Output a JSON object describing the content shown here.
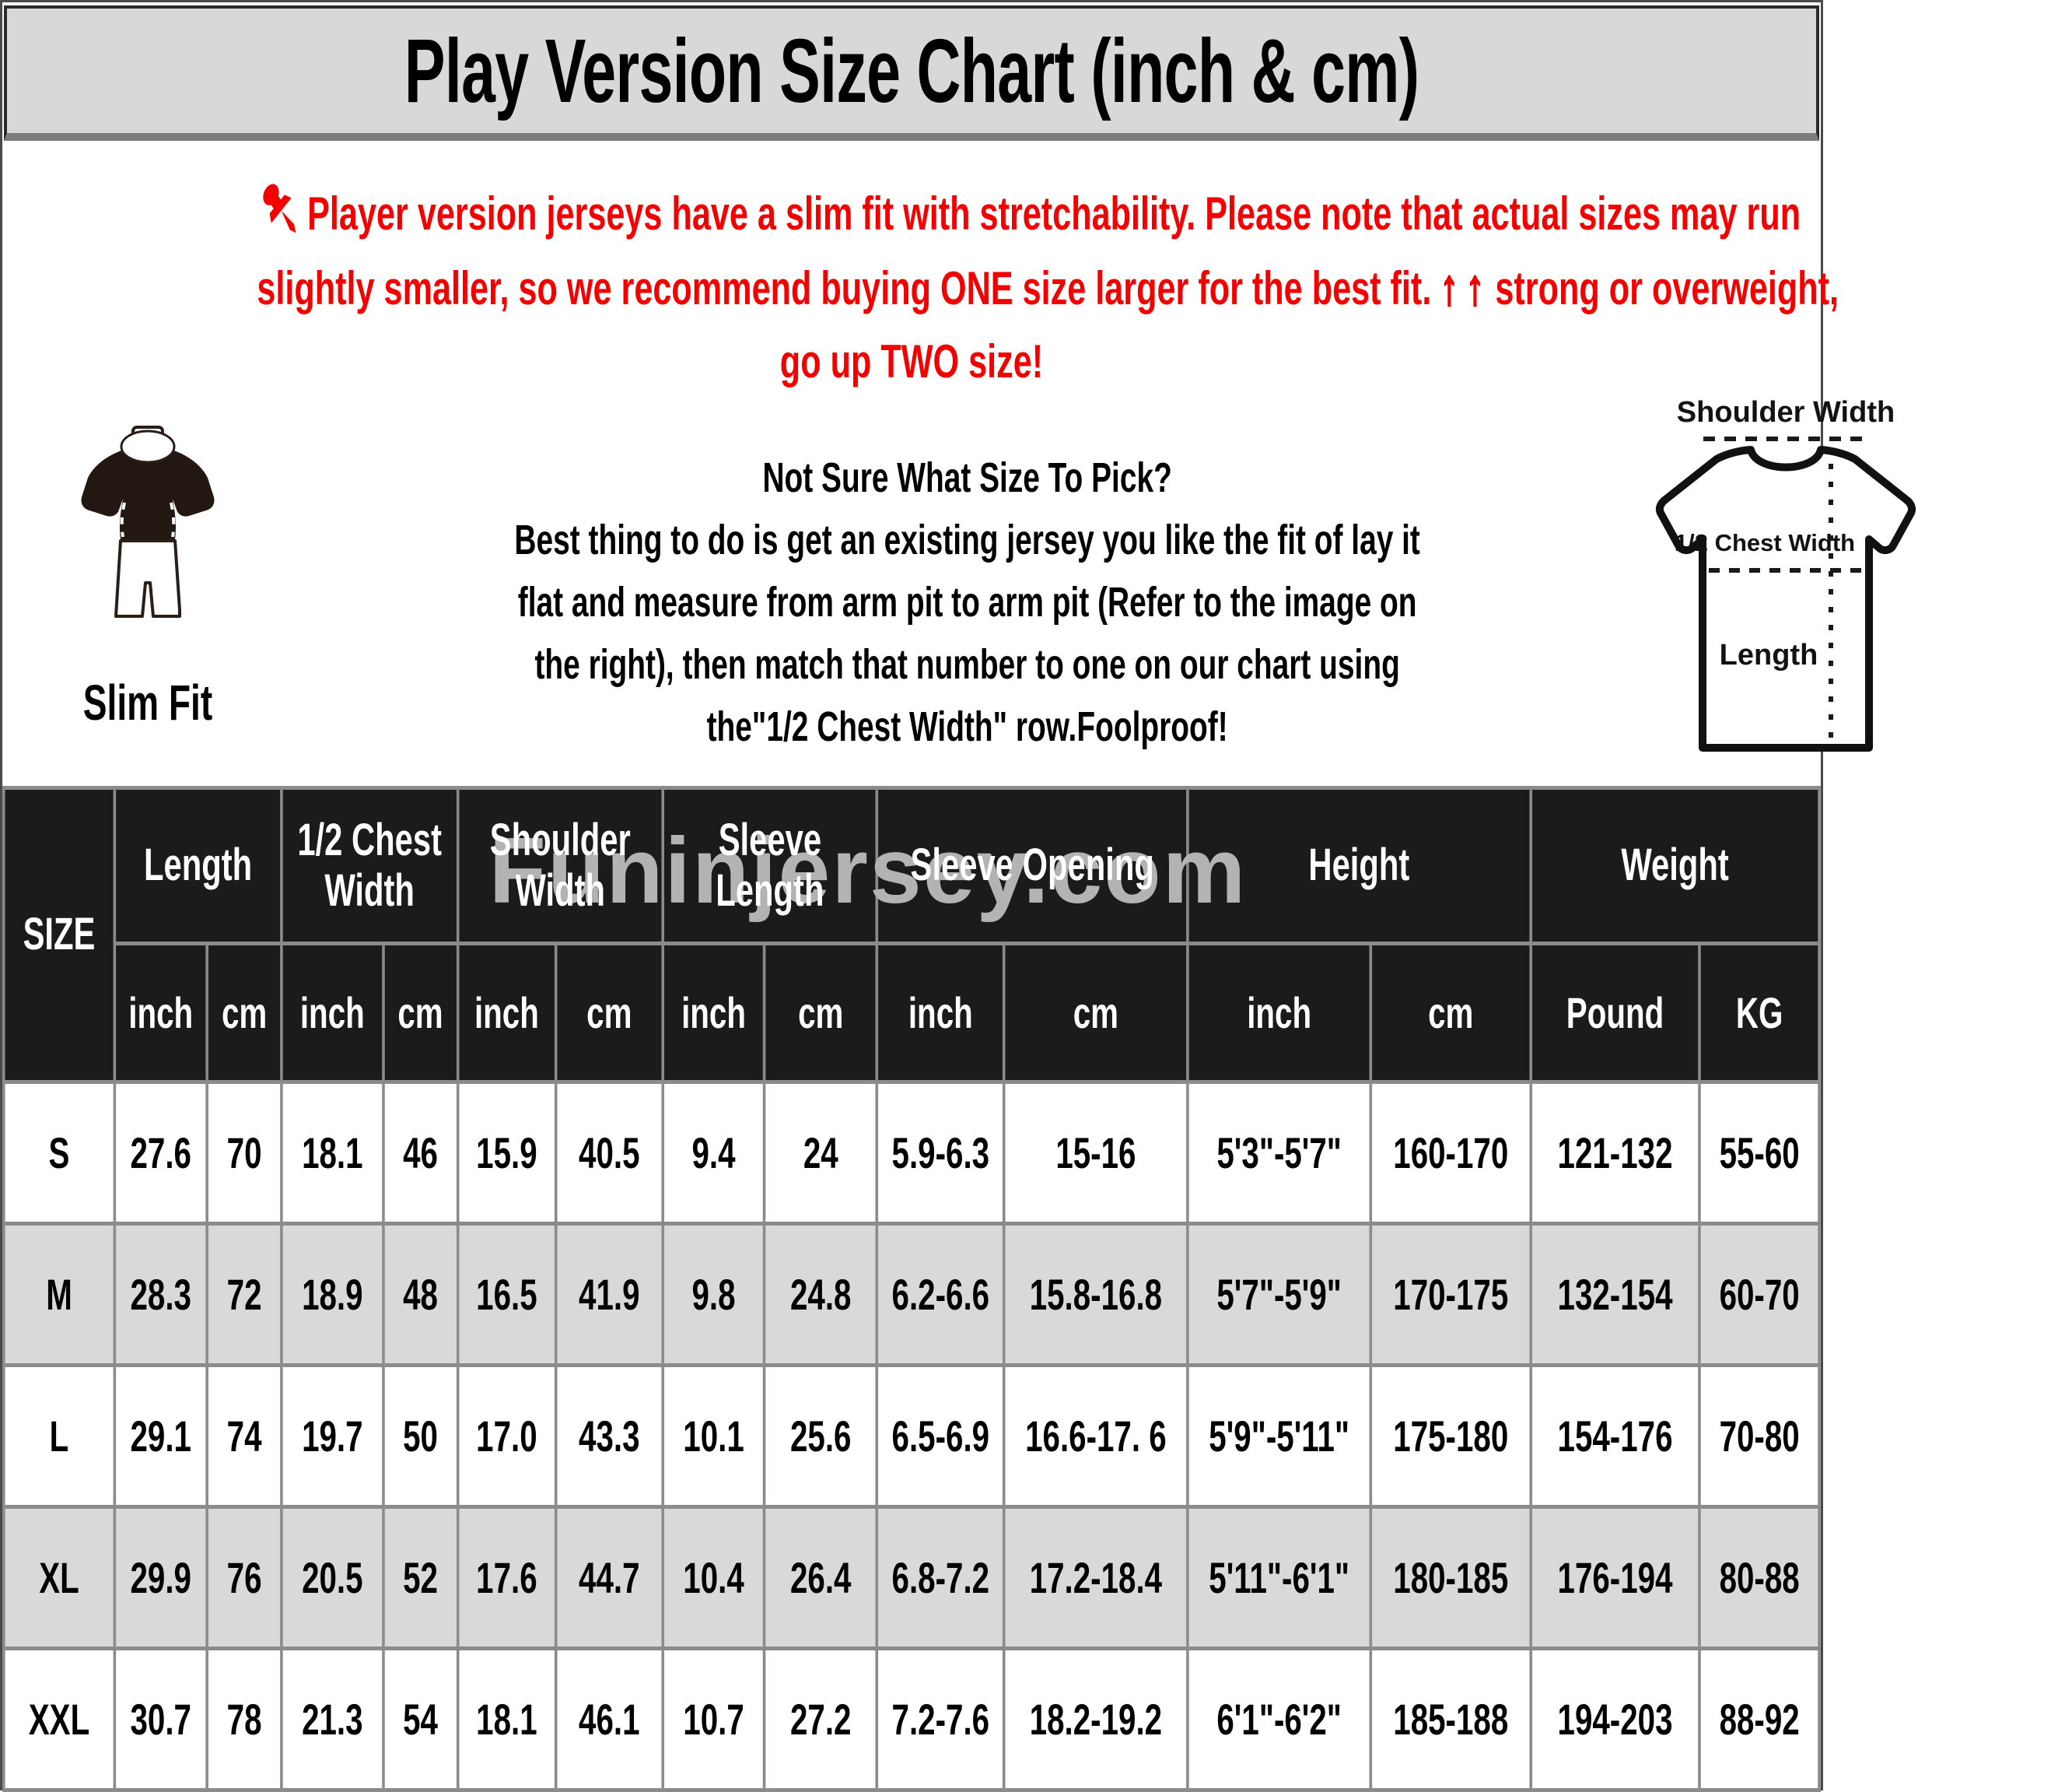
{
  "title": "Play Version Size Chart (inch & cm)",
  "note": {
    "line1": "Player version jerseys have a slim fit with stretchability. Please note that actual sizes may run",
    "line2_start": "slightly smaller, so we recommend buying ONE size larger for the best fit.",
    "arrows": "↑↑",
    "line2_end": "strong or overweight,",
    "line3": "go up TWO size!"
  },
  "fit_figure": {
    "caption": "Slim Fit"
  },
  "size_guide": {
    "heading": "Not Sure What Size To Pick?",
    "lines": [
      "Best thing to do is get an existing jersey you like the fit of lay it",
      "flat and measure from arm pit to arm pit (Refer to the image on",
      "the right), then match that number to one on our chart using",
      "the\"1/2 Chest Width\" row.Foolproof!"
    ]
  },
  "diagram": {
    "shoulder_label": "Shoulder Width",
    "chest_label": "1/2 Chest Width",
    "length_label": "Length"
  },
  "watermark": "Funinjersey.com",
  "size_table": {
    "corner_label": "SIZE",
    "groups": [
      {
        "label": "Length",
        "units": [
          "inch",
          "cm"
        ]
      },
      {
        "label": "1/2 Chest\nWidth",
        "units": [
          "inch",
          "cm"
        ]
      },
      {
        "label": "Shoulder\nWidth",
        "units": [
          "inch",
          "cm"
        ]
      },
      {
        "label": "Sleeve\nLength",
        "units": [
          "inch",
          "cm"
        ]
      },
      {
        "label": "Sleeve Opening",
        "units": [
          "inch",
          "cm"
        ]
      },
      {
        "label": "Height",
        "units": [
          "inch",
          "cm"
        ]
      },
      {
        "label": "Weight",
        "units": [
          "Pound",
          "KG"
        ]
      }
    ],
    "rows": [
      {
        "size": "S",
        "values": [
          "27.6",
          "70",
          "18.1",
          "46",
          "15.9",
          "40.5",
          "9.4",
          "24",
          "5.9-6.3",
          "15-16",
          "5'3\"-5'7\"",
          "160-170",
          "121-132",
          "55-60"
        ]
      },
      {
        "size": "M",
        "values": [
          "28.3",
          "72",
          "18.9",
          "48",
          "16.5",
          "41.9",
          "9.8",
          "24.8",
          "6.2-6.6",
          "15.8-16.8",
          "5'7\"-5'9\"",
          "170-175",
          "132-154",
          "60-70"
        ]
      },
      {
        "size": "L",
        "values": [
          "29.1",
          "74",
          "19.7",
          "50",
          "17.0",
          "43.3",
          "10.1",
          "25.6",
          "6.5-6.9",
          "16.6-17. 6",
          "5'9\"-5'11\"",
          "175-180",
          "154-176",
          "70-80"
        ]
      },
      {
        "size": "XL",
        "values": [
          "29.9",
          "76",
          "20.5",
          "52",
          "17.6",
          "44.7",
          "10.4",
          "26.4",
          "6.8-7.2",
          "17.2-18.4",
          "5'11\"-6'1\"",
          "180-185",
          "176-194",
          "80-88"
        ]
      },
      {
        "size": "XXL",
        "values": [
          "30.7",
          "78",
          "21.3",
          "54",
          "18.1",
          "46.1",
          "10.7",
          "27.2",
          "7.2-7.6",
          "18.2-19.2",
          "6'1\"-6'2\"",
          "185-188",
          "194-203",
          "88-92"
        ]
      }
    ]
  },
  "colors": {
    "accent_red": "#f40000",
    "header_bg": "#1b1b1b",
    "row_alt_gray": "#d9d9d9",
    "title_bg": "#d8d8d8",
    "grid_border": "#8b8b8b",
    "watermark_gray": "#b3b3b3"
  }
}
